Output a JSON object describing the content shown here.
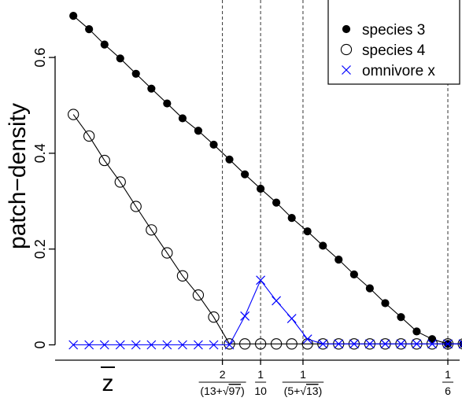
{
  "chart_data": {
    "type": "line",
    "ylabel": "patch−density",
    "xlabel": "z̅",
    "xlabel_text": "z",
    "xlim": [
      0.0268,
      0.1709
    ],
    "ylim": [
      -0.032,
      0.72
    ],
    "y_ticks": [
      {
        "value": 0,
        "label": "0"
      },
      {
        "value": 0.2,
        "label": "0.2"
      },
      {
        "value": 0.4,
        "label": "0.4"
      },
      {
        "value": 0.6,
        "label": "0.6"
      }
    ],
    "x_ticks": [
      {
        "value": 0.0864,
        "num": "2",
        "den": "(13+√97)",
        "den_pre": "(13+",
        "den_rad": "97",
        "den_post": ")"
      },
      {
        "value": 0.1,
        "num": "1",
        "den": "10"
      },
      {
        "value": 0.1151,
        "num": "1",
        "den": "(5+√13)",
        "den_pre": "(5+",
        "den_rad": "13",
        "den_post": ")"
      },
      {
        "value": 0.1667,
        "num": "1",
        "den": "6"
      }
    ],
    "vlines": [
      0.0864,
      0.1,
      0.1151,
      0.1667
    ],
    "legend": {
      "position": "top-right",
      "entries": [
        {
          "label": "species 3",
          "marker": "filled-circle",
          "color": "#000000"
        },
        {
          "label": "species 4",
          "marker": "open-circle",
          "color": "#000000"
        },
        {
          "label": "omnivore x",
          "marker": "cross",
          "color": "#0000ff"
        }
      ]
    },
    "series": [
      {
        "name": "species 3",
        "marker": "filled-circle",
        "color": "#000000",
        "x": [
          0.0333,
          0.0389,
          0.0444,
          0.05,
          0.0556,
          0.0611,
          0.0667,
          0.0722,
          0.0778,
          0.0833,
          0.0889,
          0.0944,
          0.1,
          0.1056,
          0.1111,
          0.1167,
          0.1222,
          0.1278,
          0.1333,
          0.1389,
          0.1444,
          0.15,
          0.1556,
          0.1611,
          0.1667,
          0.1722
        ],
        "y": [
          0.687,
          0.659,
          0.627,
          0.598,
          0.566,
          0.535,
          0.504,
          0.473,
          0.447,
          0.418,
          0.387,
          0.356,
          0.326,
          0.297,
          0.265,
          0.237,
          0.207,
          0.178,
          0.147,
          0.118,
          0.087,
          0.058,
          0.028,
          0.012,
          0.002,
          0.002
        ]
      },
      {
        "name": "species 4",
        "marker": "open-circle",
        "color": "#000000",
        "x": [
          0.0333,
          0.0389,
          0.0444,
          0.05,
          0.0556,
          0.0611,
          0.0667,
          0.0722,
          0.0778,
          0.0833,
          0.0889,
          0.0944,
          0.1,
          0.1056,
          0.1111,
          0.1167,
          0.1222,
          0.1278,
          0.1333,
          0.1389,
          0.1444,
          0.15,
          0.1556,
          0.1611,
          0.1667,
          0.1722
        ],
        "y": [
          0.481,
          0.436,
          0.385,
          0.34,
          0.289,
          0.24,
          0.192,
          0.144,
          0.104,
          0.058,
          0.002,
          0.002,
          0.002,
          0.002,
          0.002,
          0.002,
          0.002,
          0.002,
          0.002,
          0.002,
          0.002,
          0.002,
          0.002,
          0.002,
          0.002,
          0.002
        ]
      },
      {
        "name": "omnivore x",
        "marker": "cross",
        "color": "#0000ff",
        "x": [
          0.0333,
          0.0389,
          0.0444,
          0.05,
          0.0556,
          0.0611,
          0.0667,
          0.0722,
          0.0778,
          0.0833,
          0.0889,
          0.0944,
          0.1,
          0.1056,
          0.1111,
          0.1167,
          0.1222,
          0.1278,
          0.1333,
          0.1389,
          0.1444,
          0.15,
          0.1556,
          0.1611,
          0.1667,
          0.1722
        ],
        "y": [
          0,
          0,
          0,
          0,
          0,
          0,
          0,
          0,
          0,
          0,
          0,
          0.06,
          0.135,
          0.092,
          0.055,
          0.012,
          0.002,
          0.002,
          0.002,
          0.002,
          0.002,
          0.002,
          0.002,
          0.002,
          0.002,
          0.002
        ]
      }
    ]
  }
}
